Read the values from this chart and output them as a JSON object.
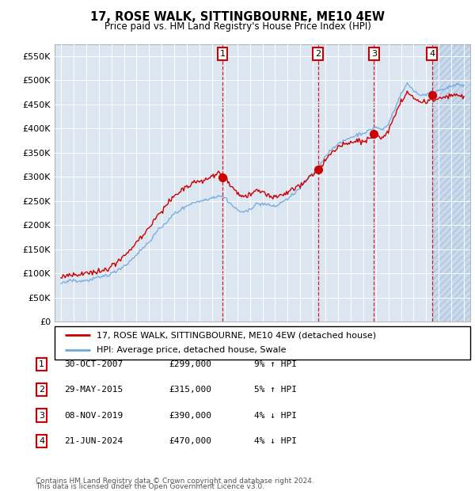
{
  "title": "17, ROSE WALK, SITTINGBOURNE, ME10 4EW",
  "subtitle": "Price paid vs. HM Land Registry's House Price Index (HPI)",
  "ylim": [
    0,
    575000
  ],
  "yticks": [
    0,
    50000,
    100000,
    150000,
    200000,
    250000,
    300000,
    350000,
    400000,
    450000,
    500000,
    550000
  ],
  "ytick_labels": [
    "£0",
    "£50K",
    "£100K",
    "£150K",
    "£200K",
    "£250K",
    "£300K",
    "£350K",
    "£400K",
    "£450K",
    "£500K",
    "£550K"
  ],
  "xlim_start": 1994.5,
  "xlim_end": 2027.5,
  "plot_bg_color": "#dce6f1",
  "grid_color": "#ffffff",
  "sale_color": "#cc0000",
  "hpi_color": "#6fa8dc",
  "transactions": [
    {
      "num": 1,
      "date": "30-OCT-2007",
      "price": 299000,
      "pct": "9%",
      "dir": "↑",
      "year": 2007.83
    },
    {
      "num": 2,
      "date": "29-MAY-2015",
      "price": 315000,
      "pct": "5%",
      "dir": "↑",
      "year": 2015.41
    },
    {
      "num": 3,
      "date": "08-NOV-2019",
      "price": 390000,
      "pct": "4%",
      "dir": "↓",
      "year": 2019.85
    },
    {
      "num": 4,
      "date": "21-JUN-2024",
      "price": 470000,
      "pct": "4%",
      "dir": "↓",
      "year": 2024.47
    }
  ],
  "legend_line1": "17, ROSE WALK, SITTINGBOURNE, ME10 4EW (detached house)",
  "legend_line2": "HPI: Average price, detached house, Swale",
  "footer1": "Contains HM Land Registry data © Crown copyright and database right 2024.",
  "footer2": "This data is licensed under the Open Government Licence v3.0."
}
